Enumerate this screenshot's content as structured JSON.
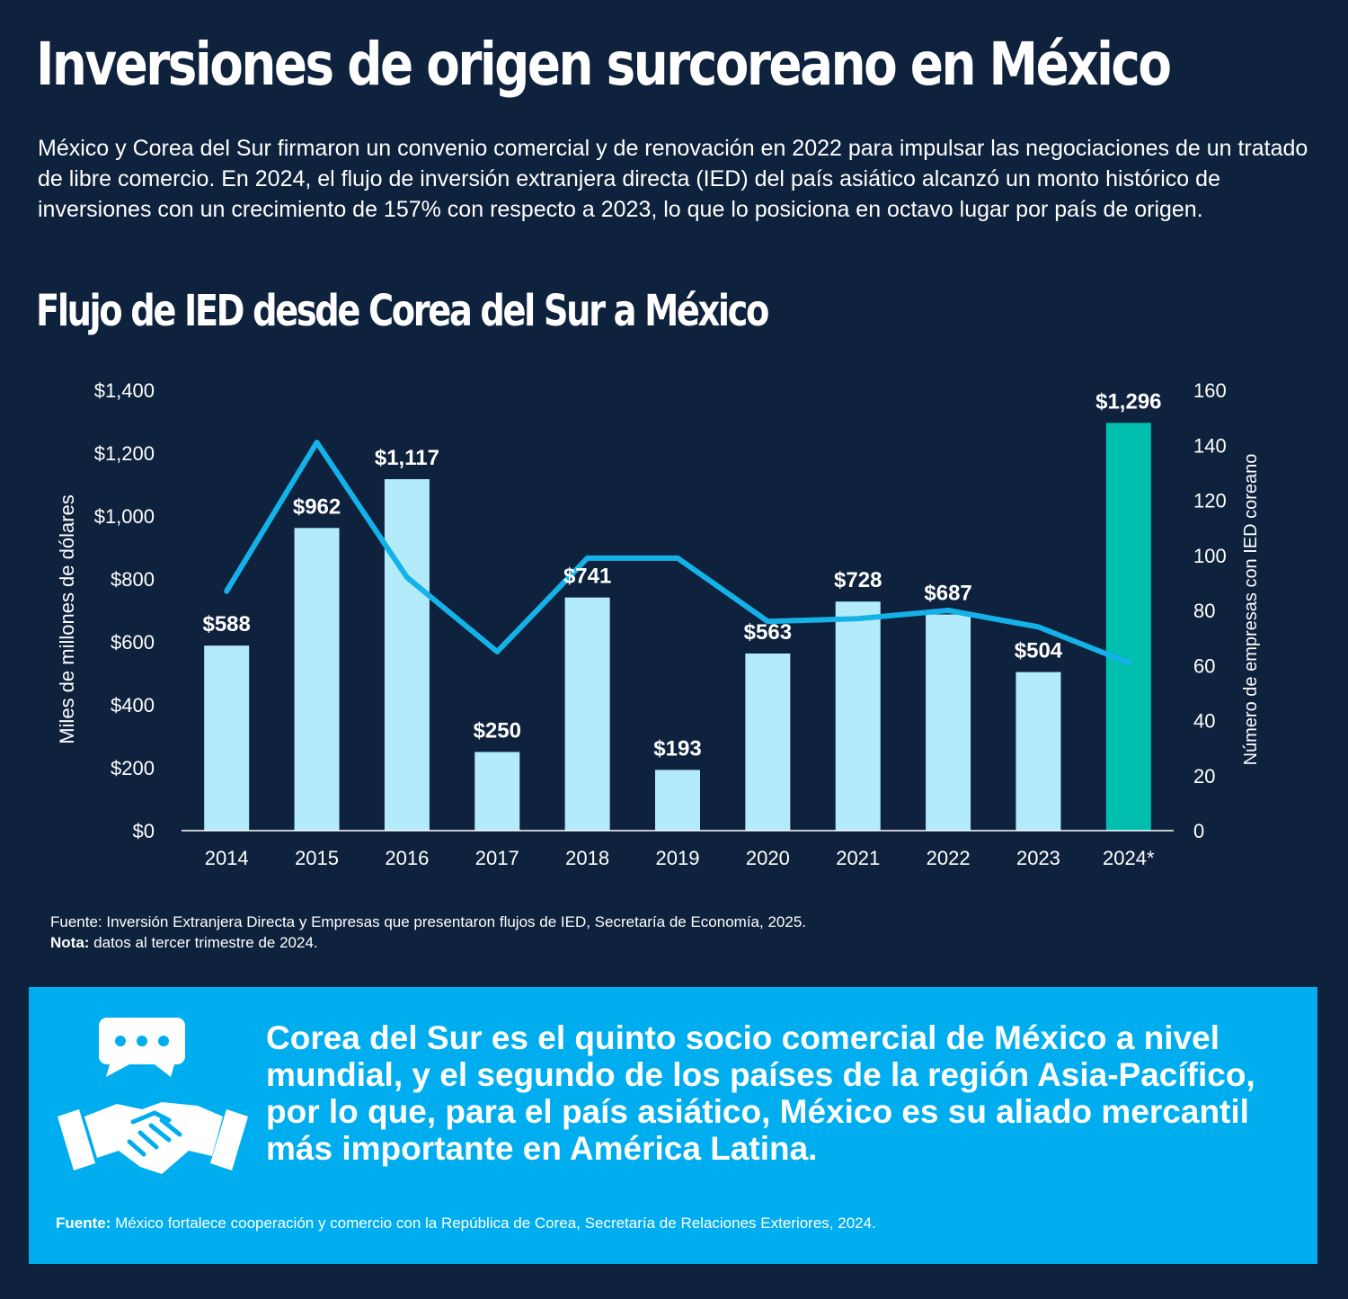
{
  "header": {
    "title": "Inversiones de origen surcoreano en México",
    "intro": "México y Corea del Sur firmaron un convenio comercial y de renovación en 2022 para impulsar las negociaciones de un tratado de libre comercio. En 2024, el flujo de inversión extranjera directa (IED) del país asiático alcanzó un monto histórico de inversiones con un crecimiento de 157% con respecto a 2023, lo que lo posiciona en octavo lugar por país de origen."
  },
  "chart_data": {
    "type": "bar",
    "title": "Flujo de IED desde Corea del Sur a México",
    "categories": [
      "2014",
      "2015",
      "2016",
      "2017",
      "2018",
      "2019",
      "2020",
      "2021",
      "2022",
      "2023",
      "2024*"
    ],
    "series": [
      {
        "type": "bar",
        "axis": "left",
        "values": [
          588,
          962,
          1117,
          250,
          741,
          193,
          563,
          728,
          687,
          504,
          1296
        ],
        "labels": [
          "$588",
          "$962",
          "$1,117",
          "$250",
          "$741",
          "$193",
          "$563",
          "$728",
          "$687",
          "$504",
          "$1,296"
        ],
        "colors": [
          "#b3ebfb",
          "#b3ebfb",
          "#b3ebfb",
          "#b3ebfb",
          "#b3ebfb",
          "#b3ebfb",
          "#b3ebfb",
          "#b3ebfb",
          "#b3ebfb",
          "#b3ebfb",
          "#00bfae"
        ]
      },
      {
        "type": "line",
        "axis": "right",
        "values": [
          87,
          141,
          92,
          65,
          99,
          99,
          76,
          77,
          80,
          74,
          61
        ],
        "color": "#14b2e8"
      }
    ],
    "ylabel": "Miles de millones de dólares",
    "ylim": [
      0,
      1400
    ],
    "yticks": [
      "$0",
      "$200",
      "$400",
      "$600",
      "$800",
      "$1,000",
      "$1,200",
      "$1,400"
    ],
    "y2label": "Número de empresas con IED coreano",
    "y2lim": [
      0,
      160
    ],
    "y2ticks": [
      "0",
      "20",
      "40",
      "60",
      "80",
      "100",
      "120",
      "140",
      "160"
    ],
    "grid": false
  },
  "source": {
    "text": "Fuente: Inversión Extranjera Directa y Empresas que presentaron flujos de IED, Secretaría de Economía, 2025.",
    "note_label": "Nota:",
    "note_text": " datos al tercer trimestre de 2024."
  },
  "callout": {
    "icon": "handshake-chat-icon",
    "text": "Corea del Sur es el quinto socio comercial de México a nivel mundial, y el segundo de los países de la región Asia-Pacífico, por lo que, para el país asiático, México es su aliado mercantil más importante en América Latina.",
    "source_label": "Fuente:",
    "source_text": " México fortalece cooperación y comercio con la República de Corea, Secretaría de Relaciones Exteriores, 2024."
  }
}
